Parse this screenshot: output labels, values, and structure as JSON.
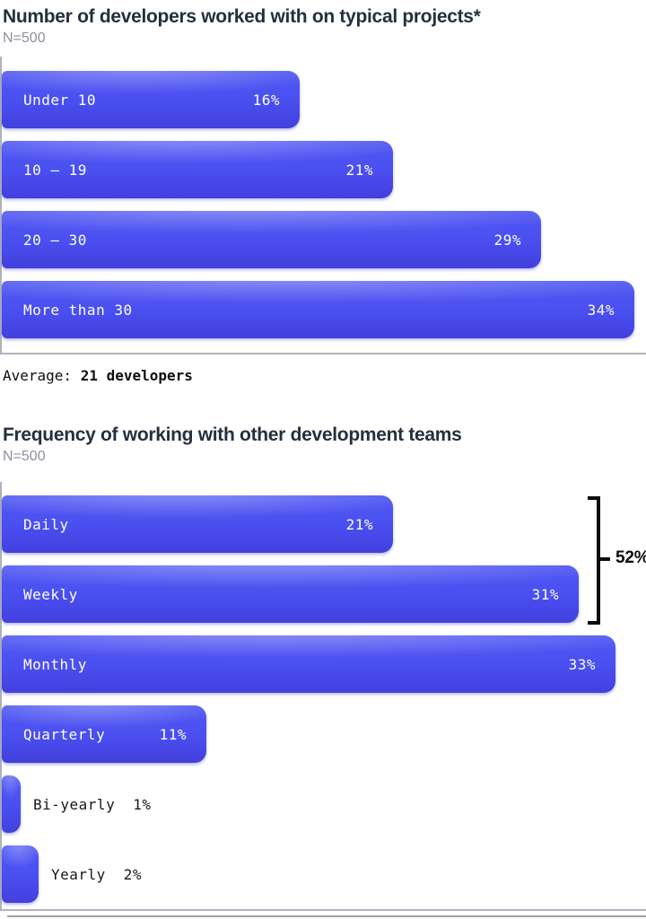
{
  "colors": {
    "bar_blue": "#4a4ff0",
    "title_text": "#25303e",
    "subtitle_gray": "#8b919b",
    "axis_gray": "#aeb4bd",
    "bar_text": "#ffffff",
    "dark_text": "#15171c",
    "bracket_black": "#0b0c0e"
  },
  "charts": [
    {
      "title": "Number of developers worked with on typical projects*",
      "n_label": "N=500",
      "bars": [
        {
          "label": "Under 10",
          "pct": 16,
          "pct_label": "16%"
        },
        {
          "label": "10 – 19",
          "pct": 21,
          "pct_label": "21%"
        },
        {
          "label": "20 – 30",
          "pct": 29,
          "pct_label": "29%"
        },
        {
          "label": "More than 30",
          "pct": 34,
          "pct_label": "34%"
        }
      ],
      "footer": {
        "average_prefix": "Average: ",
        "average_value": "21 developers"
      }
    },
    {
      "title": "Frequency of working with other development teams",
      "n_label": "N=500",
      "bars": [
        {
          "label": "Daily",
          "pct": 21,
          "pct_label": "21%"
        },
        {
          "label": "Weekly",
          "pct": 31,
          "pct_label": "31%"
        },
        {
          "label": "Monthly",
          "pct": 33,
          "pct_label": "33%"
        },
        {
          "label": "Quarterly",
          "pct": 11,
          "pct_label": "11%"
        },
        {
          "label": "Bi-yearly",
          "pct": 1,
          "pct_label": "1%"
        },
        {
          "label": "Yearly",
          "pct": 2,
          "pct_label": "2%"
        }
      ],
      "bracket": {
        "label": "52%",
        "covers": [
          "Daily",
          "Weekly"
        ]
      }
    }
  ],
  "chart_data": [
    {
      "type": "bar",
      "orientation": "horizontal",
      "title": "Number of developers worked with on typical projects*",
      "subtitle": "N=500",
      "categories": [
        "Under 10",
        "10 – 19",
        "20 – 30",
        "More than 30"
      ],
      "values": [
        16,
        21,
        29,
        34
      ],
      "unit": "%",
      "xlim": [
        0,
        35
      ],
      "grid": false,
      "legend": false,
      "annotations": [
        "Average: 21 developers"
      ]
    },
    {
      "type": "bar",
      "orientation": "horizontal",
      "title": "Frequency of working with other development teams",
      "subtitle": "N=500",
      "categories": [
        "Daily",
        "Weekly",
        "Monthly",
        "Quarterly",
        "Bi-yearly",
        "Yearly"
      ],
      "values": [
        21,
        31,
        33,
        11,
        1,
        2
      ],
      "unit": "%",
      "xlim": [
        0,
        35
      ],
      "grid": false,
      "legend": false,
      "annotations": [
        "Daily + Weekly bracket = 52%"
      ]
    }
  ]
}
